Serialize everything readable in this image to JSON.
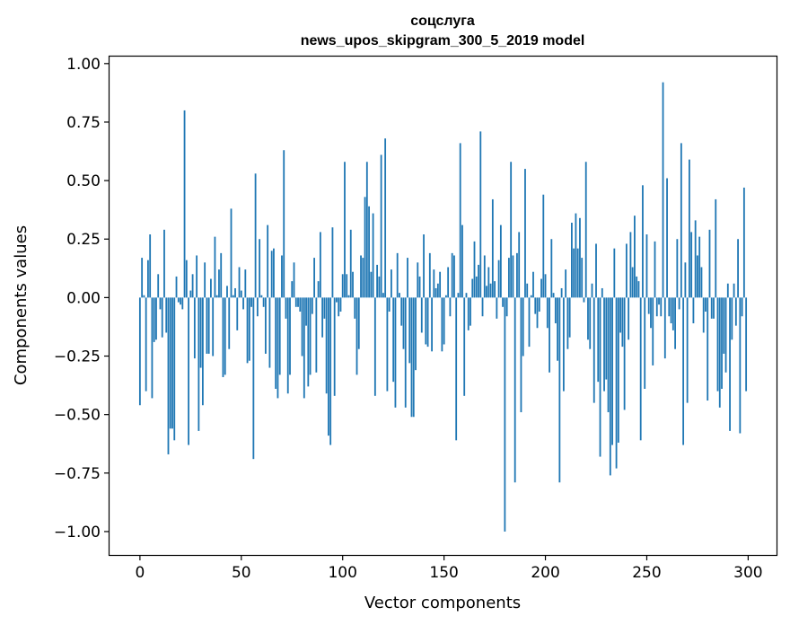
{
  "chart_data": {
    "type": "bar",
    "title_lines": [
      "соцслуга",
      "news_upos_skipgram_300_5_2019 model"
    ],
    "xlabel": "Vector components",
    "ylabel": "Components values",
    "xlim": [
      -15,
      314
    ],
    "ylim": [
      -1.1,
      1.03
    ],
    "xticks": [
      0,
      50,
      100,
      150,
      200,
      250,
      300
    ],
    "xtick_labels": [
      "0",
      "50",
      "100",
      "150",
      "200",
      "250",
      "300"
    ],
    "yticks": [
      1.0,
      0.75,
      0.5,
      0.25,
      0.0,
      -0.25,
      -0.5,
      -0.75,
      -1.0
    ],
    "ytick_labels": [
      "1.00",
      "0.75",
      "0.50",
      "0.25",
      "0.00",
      "−0.25",
      "−0.50",
      "−0.75",
      "−1.00"
    ],
    "bar_color": "#1f77b4",
    "values": [
      -0.46,
      0.17,
      0.01,
      -0.4,
      0.16,
      0.27,
      -0.43,
      -0.19,
      -0.18,
      0.1,
      -0.05,
      -0.17,
      0.29,
      -0.15,
      -0.67,
      -0.56,
      -0.56,
      -0.61,
      0.09,
      -0.02,
      -0.03,
      -0.05,
      0.8,
      0.16,
      -0.63,
      0.03,
      0.1,
      -0.26,
      0.18,
      -0.57,
      -0.3,
      -0.46,
      0.15,
      -0.24,
      -0.24,
      0.08,
      -0.25,
      0.26,
      0.01,
      0.12,
      0.19,
      -0.34,
      -0.33,
      0.05,
      -0.22,
      0.38,
      0.01,
      0.04,
      -0.14,
      0.13,
      0.03,
      -0.05,
      0.12,
      -0.28,
      -0.27,
      -0.04,
      -0.69,
      0.53,
      -0.08,
      0.25,
      0.01,
      -0.04,
      -0.24,
      0.31,
      -0.3,
      0.2,
      0.21,
      -0.39,
      -0.43,
      -0.33,
      0.18,
      0.63,
      -0.09,
      -0.41,
      -0.33,
      0.07,
      0.15,
      -0.04,
      -0.04,
      -0.06,
      -0.25,
      -0.43,
      -0.12,
      -0.38,
      -0.33,
      -0.07,
      0.17,
      -0.32,
      0.07,
      0.28,
      -0.17,
      -0.09,
      -0.41,
      -0.59,
      -0.63,
      0.3,
      -0.42,
      -0.02,
      -0.08,
      -0.06,
      0.1,
      0.58,
      0.1,
      0.01,
      0.29,
      0.11,
      -0.09,
      -0.33,
      -0.22,
      0.18,
      0.17,
      0.43,
      0.58,
      0.39,
      0.11,
      0.36,
      -0.42,
      0.14,
      0.09,
      0.61,
      0.02,
      0.68,
      -0.4,
      -0.06,
      0.12,
      -0.36,
      -0.47,
      0.19,
      0.02,
      -0.12,
      -0.22,
      -0.47,
      0.17,
      -0.28,
      -0.51,
      -0.51,
      -0.31,
      0.15,
      0.09,
      -0.15,
      0.27,
      -0.2,
      -0.21,
      0.19,
      -0.23,
      0.12,
      0.04,
      0.06,
      0.11,
      -0.23,
      -0.2,
      0.01,
      0.13,
      -0.08,
      0.19,
      0.18,
      -0.61,
      0.02,
      0.66,
      0.31,
      -0.42,
      0.02,
      -0.14,
      -0.12,
      0.08,
      0.24,
      0.09,
      0.14,
      0.71,
      -0.08,
      0.18,
      0.05,
      0.13,
      0.06,
      0.42,
      0.07,
      -0.09,
      0.16,
      0.31,
      -0.04,
      -1.0,
      -0.08,
      0.17,
      0.58,
      0.18,
      -0.79,
      0.19,
      0.28,
      -0.49,
      -0.25,
      0.55,
      0.06,
      -0.21,
      0.01,
      0.11,
      -0.07,
      -0.13,
      -0.06,
      0.08,
      0.44,
      0.1,
      -0.13,
      -0.32,
      0.25,
      0.02,
      -0.11,
      -0.27,
      -0.79,
      0.04,
      -0.4,
      0.12,
      -0.22,
      -0.17,
      0.32,
      0.21,
      0.36,
      0.21,
      0.34,
      0.17,
      -0.02,
      0.58,
      -0.18,
      -0.22,
      0.06,
      -0.45,
      0.23,
      -0.36,
      -0.68,
      0.04,
      -0.4,
      -0.35,
      -0.49,
      -0.76,
      -0.63,
      0.21,
      -0.73,
      -0.62,
      -0.15,
      -0.21,
      -0.48,
      0.23,
      -0.18,
      0.28,
      0.13,
      0.35,
      0.09,
      0.07,
      -0.61,
      0.48,
      -0.39,
      0.27,
      -0.07,
      -0.13,
      -0.29,
      0.24,
      -0.08,
      -0.03,
      -0.08,
      0.92,
      -0.26,
      0.51,
      -0.08,
      -0.11,
      -0.14,
      -0.22,
      0.25,
      -0.05,
      0.66,
      -0.63,
      0.15,
      -0.45,
      0.59,
      0.28,
      -0.11,
      0.33,
      0.18,
      0.26,
      0.13,
      -0.15,
      -0.06,
      -0.44,
      0.29,
      -0.09,
      -0.09,
      0.42,
      -0.4,
      -0.47,
      -0.39,
      -0.24,
      -0.32,
      0.06,
      -0.57,
      -0.18,
      0.06,
      -0.12,
      0.25,
      -0.58,
      -0.08,
      0.47,
      -0.4
    ]
  }
}
